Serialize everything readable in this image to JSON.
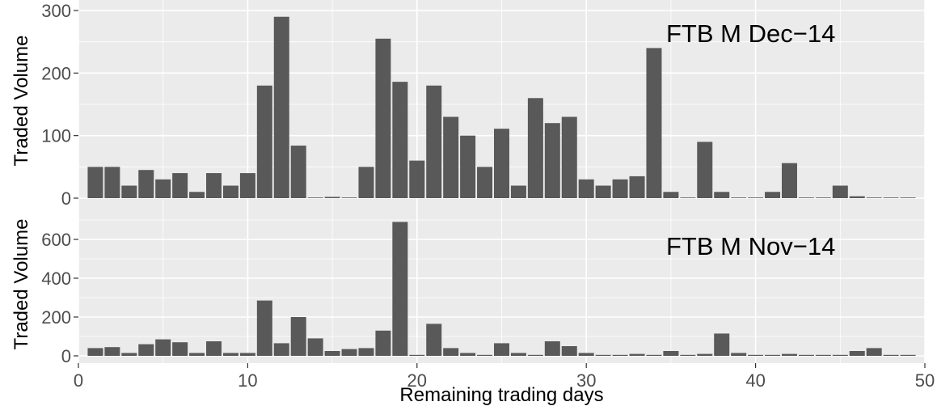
{
  "chart_data": [
    {
      "type": "bar",
      "panel_label": "FTB M Dec−14",
      "ylabel": "Traded Volume",
      "xlabel": "",
      "xlim": [
        0,
        50
      ],
      "ylim": [
        0,
        300
      ],
      "y_ticks": [
        0,
        100,
        200,
        300
      ],
      "x_ticks": [
        0,
        10,
        20,
        30,
        40,
        50
      ],
      "bar_color": "#595959",
      "x": [
        1,
        2,
        3,
        4,
        5,
        6,
        7,
        8,
        9,
        10,
        11,
        12,
        13,
        14,
        15,
        16,
        17,
        18,
        19,
        20,
        21,
        22,
        23,
        24,
        25,
        26,
        27,
        28,
        29,
        30,
        31,
        32,
        33,
        34,
        35,
        36,
        37,
        38,
        39,
        40,
        41,
        42,
        43,
        44,
        45,
        46,
        47,
        48,
        49
      ],
      "values": [
        50,
        50,
        20,
        45,
        30,
        40,
        10,
        40,
        20,
        40,
        180,
        290,
        84,
        1,
        2,
        1,
        50,
        255,
        186,
        60,
        180,
        130,
        100,
        50,
        111,
        20,
        160,
        120,
        130,
        30,
        20,
        30,
        35,
        240,
        10,
        1,
        90,
        10,
        1,
        1,
        10,
        56,
        1,
        1,
        20,
        3,
        1,
        1,
        1
      ]
    },
    {
      "type": "bar",
      "panel_label": "FTB M Nov−14",
      "ylabel": "Traded Volume",
      "xlabel": "Remaining trading days",
      "xlim": [
        0,
        50
      ],
      "ylim": [
        0,
        700
      ],
      "y_ticks": [
        0,
        200,
        400,
        600
      ],
      "x_ticks": [
        0,
        10,
        20,
        30,
        40,
        50
      ],
      "x_tick_labels": [
        "0",
        "10",
        "20",
        "30",
        "40",
        "50"
      ],
      "bar_color": "#595959",
      "x": [
        1,
        2,
        3,
        4,
        5,
        6,
        7,
        8,
        9,
        10,
        11,
        12,
        13,
        14,
        15,
        16,
        17,
        18,
        19,
        20,
        21,
        22,
        23,
        24,
        25,
        26,
        27,
        28,
        29,
        30,
        31,
        32,
        33,
        34,
        35,
        36,
        37,
        38,
        39,
        40,
        41,
        42,
        43,
        44,
        45,
        46,
        47,
        48,
        49
      ],
      "values": [
        40,
        45,
        15,
        60,
        85,
        70,
        15,
        75,
        15,
        15,
        285,
        65,
        200,
        90,
        25,
        35,
        40,
        130,
        690,
        5,
        165,
        40,
        15,
        5,
        65,
        15,
        5,
        75,
        50,
        15,
        5,
        5,
        10,
        5,
        25,
        5,
        10,
        115,
        15,
        5,
        5,
        10,
        5,
        5,
        5,
        25,
        40,
        5,
        5
      ]
    }
  ]
}
